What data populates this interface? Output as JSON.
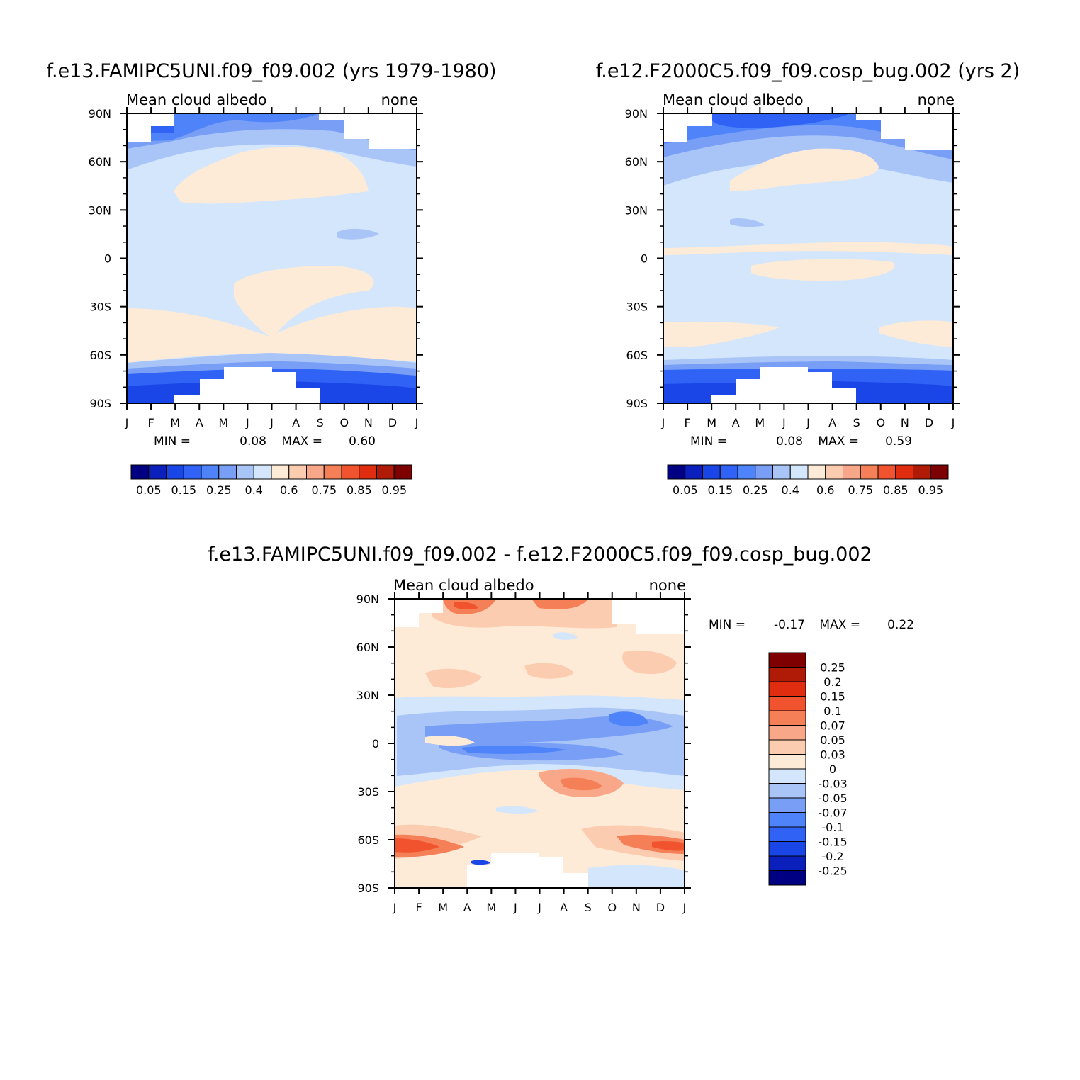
{
  "colors": {
    "albedo_scale": [
      "#000082",
      "#0a1fbb",
      "#1a46e8",
      "#2f62f5",
      "#4f83fa",
      "#789ff5",
      "#a9c5f8",
      "#d4e6fb",
      "#fdebd8",
      "#fbccb0",
      "#f8a888",
      "#f57f57",
      "#f0532d",
      "#e02d10",
      "#b01b08",
      "#7e0000"
    ],
    "diff_scale": [
      "#000082",
      "#0a1fbb",
      "#1a46e8",
      "#2f62f5",
      "#4f83fa",
      "#789ff5",
      "#a9c5f8",
      "#d4e6fb",
      "#fdebd8",
      "#fbccb0",
      "#f8a888",
      "#f57f57",
      "#f0532d",
      "#e02d10",
      "#b01b08",
      "#7e0000"
    ]
  },
  "chart_data": [
    {
      "type": "heatmap",
      "title": "f.e13.FAMIPC5UNI.f09_f09.002 (yrs 1979-1980)",
      "subtitle_left": "Mean cloud albedo",
      "subtitle_right": "none",
      "x_ticks": [
        "J",
        "F",
        "M",
        "A",
        "M",
        "J",
        "J",
        "A",
        "S",
        "O",
        "N",
        "D",
        "J"
      ],
      "y_ticks": [
        "90N",
        "60N",
        "30N",
        "0",
        "30S",
        "60S",
        "90S"
      ],
      "ylim": [
        -90,
        90
      ],
      "min_label": "MIN =",
      "min_value": "0.08",
      "max_label": "MAX =",
      "max_value": "0.60",
      "colorbar_labels": [
        "0.05",
        "0.15",
        "0.25",
        "0.4",
        "0.6",
        "0.75",
        "0.85",
        "0.95"
      ],
      "colorbar_levels": [
        0.05,
        0.1,
        0.15,
        0.2,
        0.25,
        0.3,
        0.4,
        0.5,
        0.6,
        0.7,
        0.75,
        0.8,
        0.85,
        0.9,
        0.95
      ]
    },
    {
      "type": "heatmap",
      "title": "f.e12.F2000C5.f09_f09.cosp_bug.002 (yrs 2)",
      "subtitle_left": "Mean cloud albedo",
      "subtitle_right": "none",
      "x_ticks": [
        "J",
        "F",
        "M",
        "A",
        "M",
        "J",
        "J",
        "A",
        "S",
        "O",
        "N",
        "D",
        "J"
      ],
      "y_ticks": [
        "90N",
        "60N",
        "30N",
        "0",
        "30S",
        "60S",
        "90S"
      ],
      "ylim": [
        -90,
        90
      ],
      "min_label": "MIN =",
      "min_value": "0.08",
      "max_label": "MAX =",
      "max_value": "0.59",
      "colorbar_labels": [
        "0.05",
        "0.15",
        "0.25",
        "0.4",
        "0.6",
        "0.75",
        "0.85",
        "0.95"
      ],
      "colorbar_levels": [
        0.05,
        0.1,
        0.15,
        0.2,
        0.25,
        0.3,
        0.4,
        0.5,
        0.6,
        0.7,
        0.75,
        0.8,
        0.85,
        0.9,
        0.95
      ]
    },
    {
      "type": "heatmap",
      "title": "f.e13.FAMIPC5UNI.f09_f09.002 - f.e12.F2000C5.f09_f09.cosp_bug.002",
      "subtitle_left": "Mean cloud albedo",
      "subtitle_right": "none",
      "x_ticks": [
        "J",
        "F",
        "M",
        "A",
        "M",
        "J",
        "J",
        "A",
        "S",
        "O",
        "N",
        "D",
        "J"
      ],
      "y_ticks": [
        "90N",
        "60N",
        "30N",
        "0",
        "30S",
        "60S",
        "90S"
      ],
      "ylim": [
        -90,
        90
      ],
      "min_label": "MIN =",
      "min_value": "-0.17",
      "max_label": "MAX =",
      "max_value": "0.22",
      "colorbar_labels": [
        "0.25",
        "0.2",
        "0.15",
        "0.1",
        "0.07",
        "0.05",
        "0.03",
        "0",
        "-0.03",
        "-0.05",
        "-0.07",
        "-0.1",
        "-0.15",
        "-0.2",
        "-0.25"
      ]
    }
  ]
}
